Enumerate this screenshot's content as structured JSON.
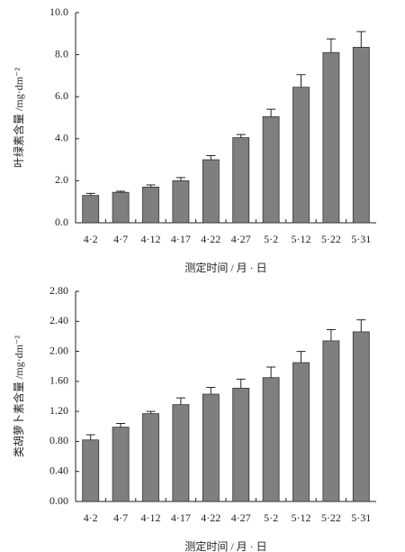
{
  "chart_data": [
    {
      "type": "bar",
      "y_label": "叶绿素含量 /mg·dm⁻²",
      "x_label": "测定时间 / 月 · 日",
      "categories": [
        "4·2",
        "4·7",
        "4·12",
        "4·17",
        "4·22",
        "4·27",
        "5·2",
        "5·12",
        "5·22",
        "5·31"
      ],
      "values": [
        1.3,
        1.45,
        1.7,
        2.0,
        3.0,
        4.05,
        5.05,
        6.45,
        8.1,
        8.35
      ],
      "errors": [
        0.1,
        0.05,
        0.1,
        0.15,
        0.2,
        0.15,
        0.35,
        0.6,
        0.65,
        0.75
      ],
      "color": "#7f7f7f",
      "ylim": [
        0,
        10
      ],
      "yticks": [
        {
          "value": 0,
          "label": "0.0"
        },
        {
          "value": 2,
          "label": "2.0"
        },
        {
          "value": 4,
          "label": "4.0"
        },
        {
          "value": 6,
          "label": "6.0"
        },
        {
          "value": 8,
          "label": "8.0"
        },
        {
          "value": 10,
          "label": "10.0"
        }
      ]
    },
    {
      "type": "bar",
      "y_label": "类胡萝卜素含量 /mg·dm⁻²",
      "x_label": "测定时间 / 月 · 日",
      "categories": [
        "4·2",
        "4·7",
        "4·12",
        "4·17",
        "4·22",
        "4·27",
        "5·2",
        "5·12",
        "5·22",
        "5·31"
      ],
      "values": [
        0.82,
        0.99,
        1.17,
        1.29,
        1.43,
        1.51,
        1.65,
        1.85,
        2.14,
        2.26
      ],
      "errors": [
        0.07,
        0.05,
        0.03,
        0.09,
        0.09,
        0.12,
        0.14,
        0.15,
        0.15,
        0.16
      ],
      "color": "#7f7f7f",
      "ylim": [
        0,
        2.8
      ],
      "yticks": [
        {
          "value": 0,
          "label": "0.00"
        },
        {
          "value": 0.4,
          "label": "0.40"
        },
        {
          "value": 0.8,
          "label": "0.80"
        },
        {
          "value": 1.2,
          "label": "1.20"
        },
        {
          "value": 1.6,
          "label": "1.60"
        },
        {
          "value": 2.0,
          "label": "2.00"
        },
        {
          "value": 2.4,
          "label": "2.40"
        },
        {
          "value": 2.8,
          "label": "2.80"
        }
      ]
    }
  ]
}
